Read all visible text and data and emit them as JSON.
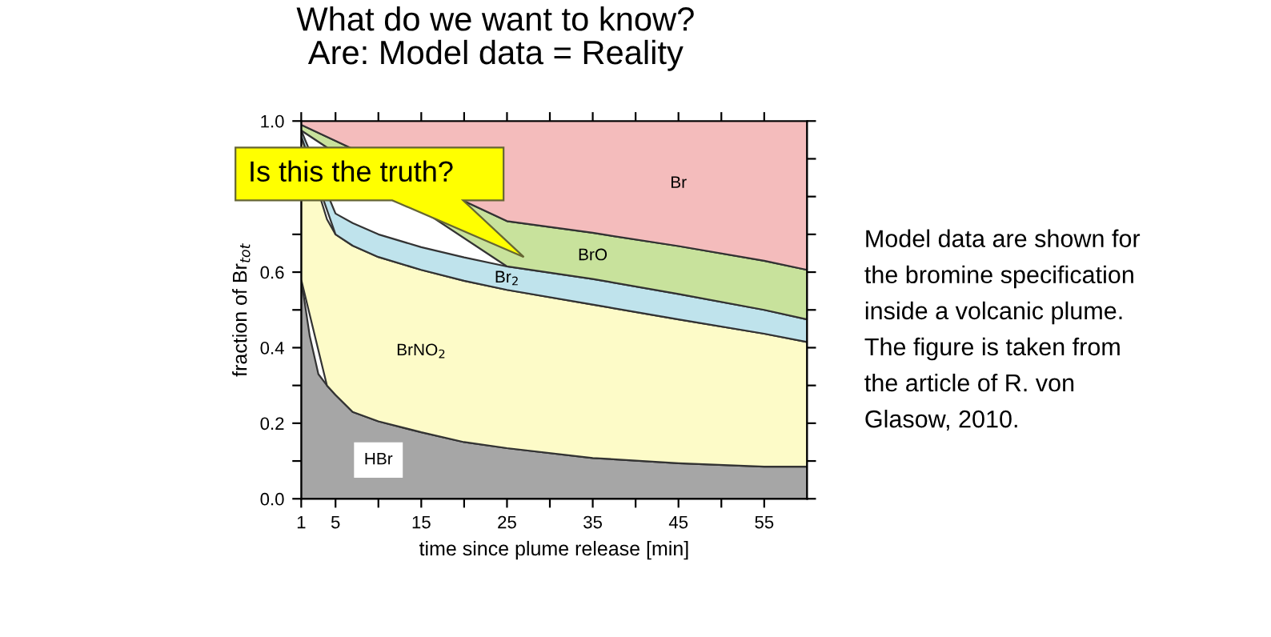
{
  "chart_data": {
    "type": "area",
    "stacked": true,
    "title": "What do we want to know?\nAre: Model data = Reality",
    "xlabel": "time since plume release [min]",
    "ylabel": "fraction of Br$_{tot}$",
    "x": [
      1,
      2,
      3,
      4,
      5,
      7,
      10,
      15,
      20,
      25,
      35,
      45,
      55,
      60
    ],
    "series": [
      {
        "name": "HBr",
        "color": "#a6a6a6",
        "values": [
          0.58,
          0.43,
          0.33,
          0.3,
          0.275,
          0.23,
          0.205,
          0.176,
          0.15,
          0.134,
          0.108,
          0.094,
          0.085,
          0.085
        ]
      },
      {
        "name": "BrNO$_{2}$",
        "color": "#fdfbc8",
        "values": [
          0.38,
          null,
          null,
          0.44,
          0.425,
          0.44,
          0.435,
          0.43,
          0.427,
          0.419,
          0.406,
          0.381,
          0.352,
          0.33
        ]
      },
      {
        "name": "Br$_{2}$",
        "color": "#bfe3ec",
        "values": [
          0.015,
          null,
          null,
          null,
          0.055,
          0.06,
          0.06,
          0.06,
          0.062,
          0.062,
          0.068,
          0.067,
          0.063,
          0.06
        ]
      },
      {
        "name": "BrO",
        "color": "#c8e29c",
        "values": [
          0.015,
          null,
          null,
          null,
          null,
          null,
          null,
          null,
          null,
          0.12,
          0.122,
          0.127,
          0.13,
          0.131
        ]
      },
      {
        "name": "Br",
        "color": "#f4bcbc",
        "values": [
          0.01,
          null,
          null,
          null,
          null,
          null,
          null,
          null,
          null,
          0.265,
          0.296,
          0.331,
          0.37,
          0.394
        ]
      }
    ],
    "xlim": [
      1,
      60
    ],
    "ylim": [
      0,
      1
    ],
    "xticks": [
      1,
      5,
      {
        "value": 10,
        "label": null
      },
      15,
      {
        "value": 20,
        "label": null
      },
      25,
      {
        "value": 30,
        "label": null
      },
      35,
      {
        "value": 40,
        "label": null
      },
      45,
      {
        "value": 50,
        "label": null
      },
      55
    ],
    "yticks": [
      {
        "value": 0,
        "label": "0.0"
      },
      {
        "value": 0.1,
        "label": null
      },
      0.2,
      {
        "value": 0.3,
        "label": null
      },
      0.4,
      {
        "value": 0.5,
        "label": null
      },
      0.6,
      {
        "value": 0.7,
        "label": null
      },
      {
        "value": 0.8,
        "label": null
      },
      {
        "value": 0.9,
        "label": null
      },
      {
        "value": 1,
        "label": "1.0"
      }
    ],
    "grid": false,
    "legend": false,
    "annotations": [
      "Is this the truth?",
      "Model data are shown for\nthe bromine specification\ninside a volcanic plume.\nThe figure is taken from\nthe article of R. von\nGlasow, 2010."
    ]
  }
}
